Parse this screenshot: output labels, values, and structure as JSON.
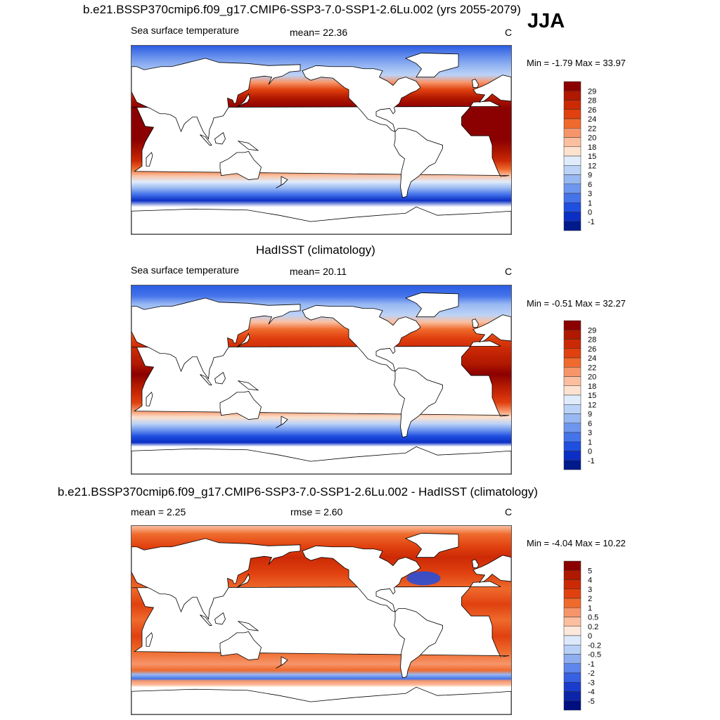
{
  "season": "JJA",
  "chart_data": [
    {
      "type": "heatmap",
      "title": "b.e21.BSSP370cmip6.f09_g17.CMIP6-SSP3-7.0-SSP1-2.6Lu.002 (yrs 2055-2079)",
      "left_label": "Sea surface temperature",
      "center_label": "mean=  22.36",
      "units": "C",
      "minmax": "Min =  -1.79 Max =  33.97",
      "stat_mean": 22.36,
      "min": -1.79,
      "max": 33.97,
      "colorbar_levels": [
        "29",
        "28",
        "26",
        "24",
        "22",
        "20",
        "18",
        "15",
        "12",
        "9",
        "6",
        "3",
        "1",
        "0",
        "-1"
      ],
      "colorbar_colors": [
        "#8b0000",
        "#b01800",
        "#cc2a06",
        "#e0410f",
        "#ef6a2c",
        "#f7956a",
        "#fbbfa0",
        "#fde2cf",
        "#e0ecfb",
        "#bcd3f7",
        "#98b8f2",
        "#6f96ee",
        "#4473ea",
        "#1f4fe0",
        "#0b2fc4",
        "#001a8c"
      ]
    },
    {
      "type": "heatmap",
      "title": "HadISST (climatology)",
      "left_label": "Sea surface temperature",
      "center_label": "mean=  20.11",
      "units": "C",
      "minmax": "Min =  -0.51 Max =  32.27",
      "stat_mean": 20.11,
      "min": -0.51,
      "max": 32.27,
      "colorbar_levels": [
        "29",
        "28",
        "26",
        "24",
        "22",
        "20",
        "18",
        "15",
        "12",
        "9",
        "6",
        "3",
        "1",
        "0",
        "-1"
      ],
      "colorbar_colors": [
        "#8b0000",
        "#b01800",
        "#cc2a06",
        "#e0410f",
        "#ef6a2c",
        "#f7956a",
        "#fbbfa0",
        "#fde2cf",
        "#e0ecfb",
        "#bcd3f7",
        "#98b8f2",
        "#6f96ee",
        "#4473ea",
        "#1f4fe0",
        "#0b2fc4",
        "#001a8c"
      ]
    },
    {
      "type": "heatmap",
      "title": "b.e21.BSSP370cmip6.f09_g17.CMIP6-SSP3-7.0-SSP1-2.6Lu.002 - HadISST (climatology)",
      "left_label": "mean =   2.25",
      "center_label": "rmse =   2.60",
      "units": "C",
      "minmax": "Min =  -4.04 Max =  10.22",
      "stat_mean": 2.25,
      "stat_rmse": 2.6,
      "min": -4.04,
      "max": 10.22,
      "colorbar_levels": [
        "5",
        "4",
        "3",
        "2",
        "1",
        "0.5",
        "0.2",
        "0",
        "-0.2",
        "-0.5",
        "-1",
        "-2",
        "-3",
        "-4",
        "-5"
      ],
      "colorbar_colors": [
        "#8b0000",
        "#b01800",
        "#cc2a06",
        "#e0410f",
        "#ef6a2c",
        "#f7956a",
        "#fbbfa0",
        "#fde9dc",
        "#dde9fb",
        "#b9d0f6",
        "#8eaef0",
        "#5f86ea",
        "#3860e2",
        "#1a3ccd",
        "#0c24a8",
        "#000f80"
      ]
    }
  ]
}
